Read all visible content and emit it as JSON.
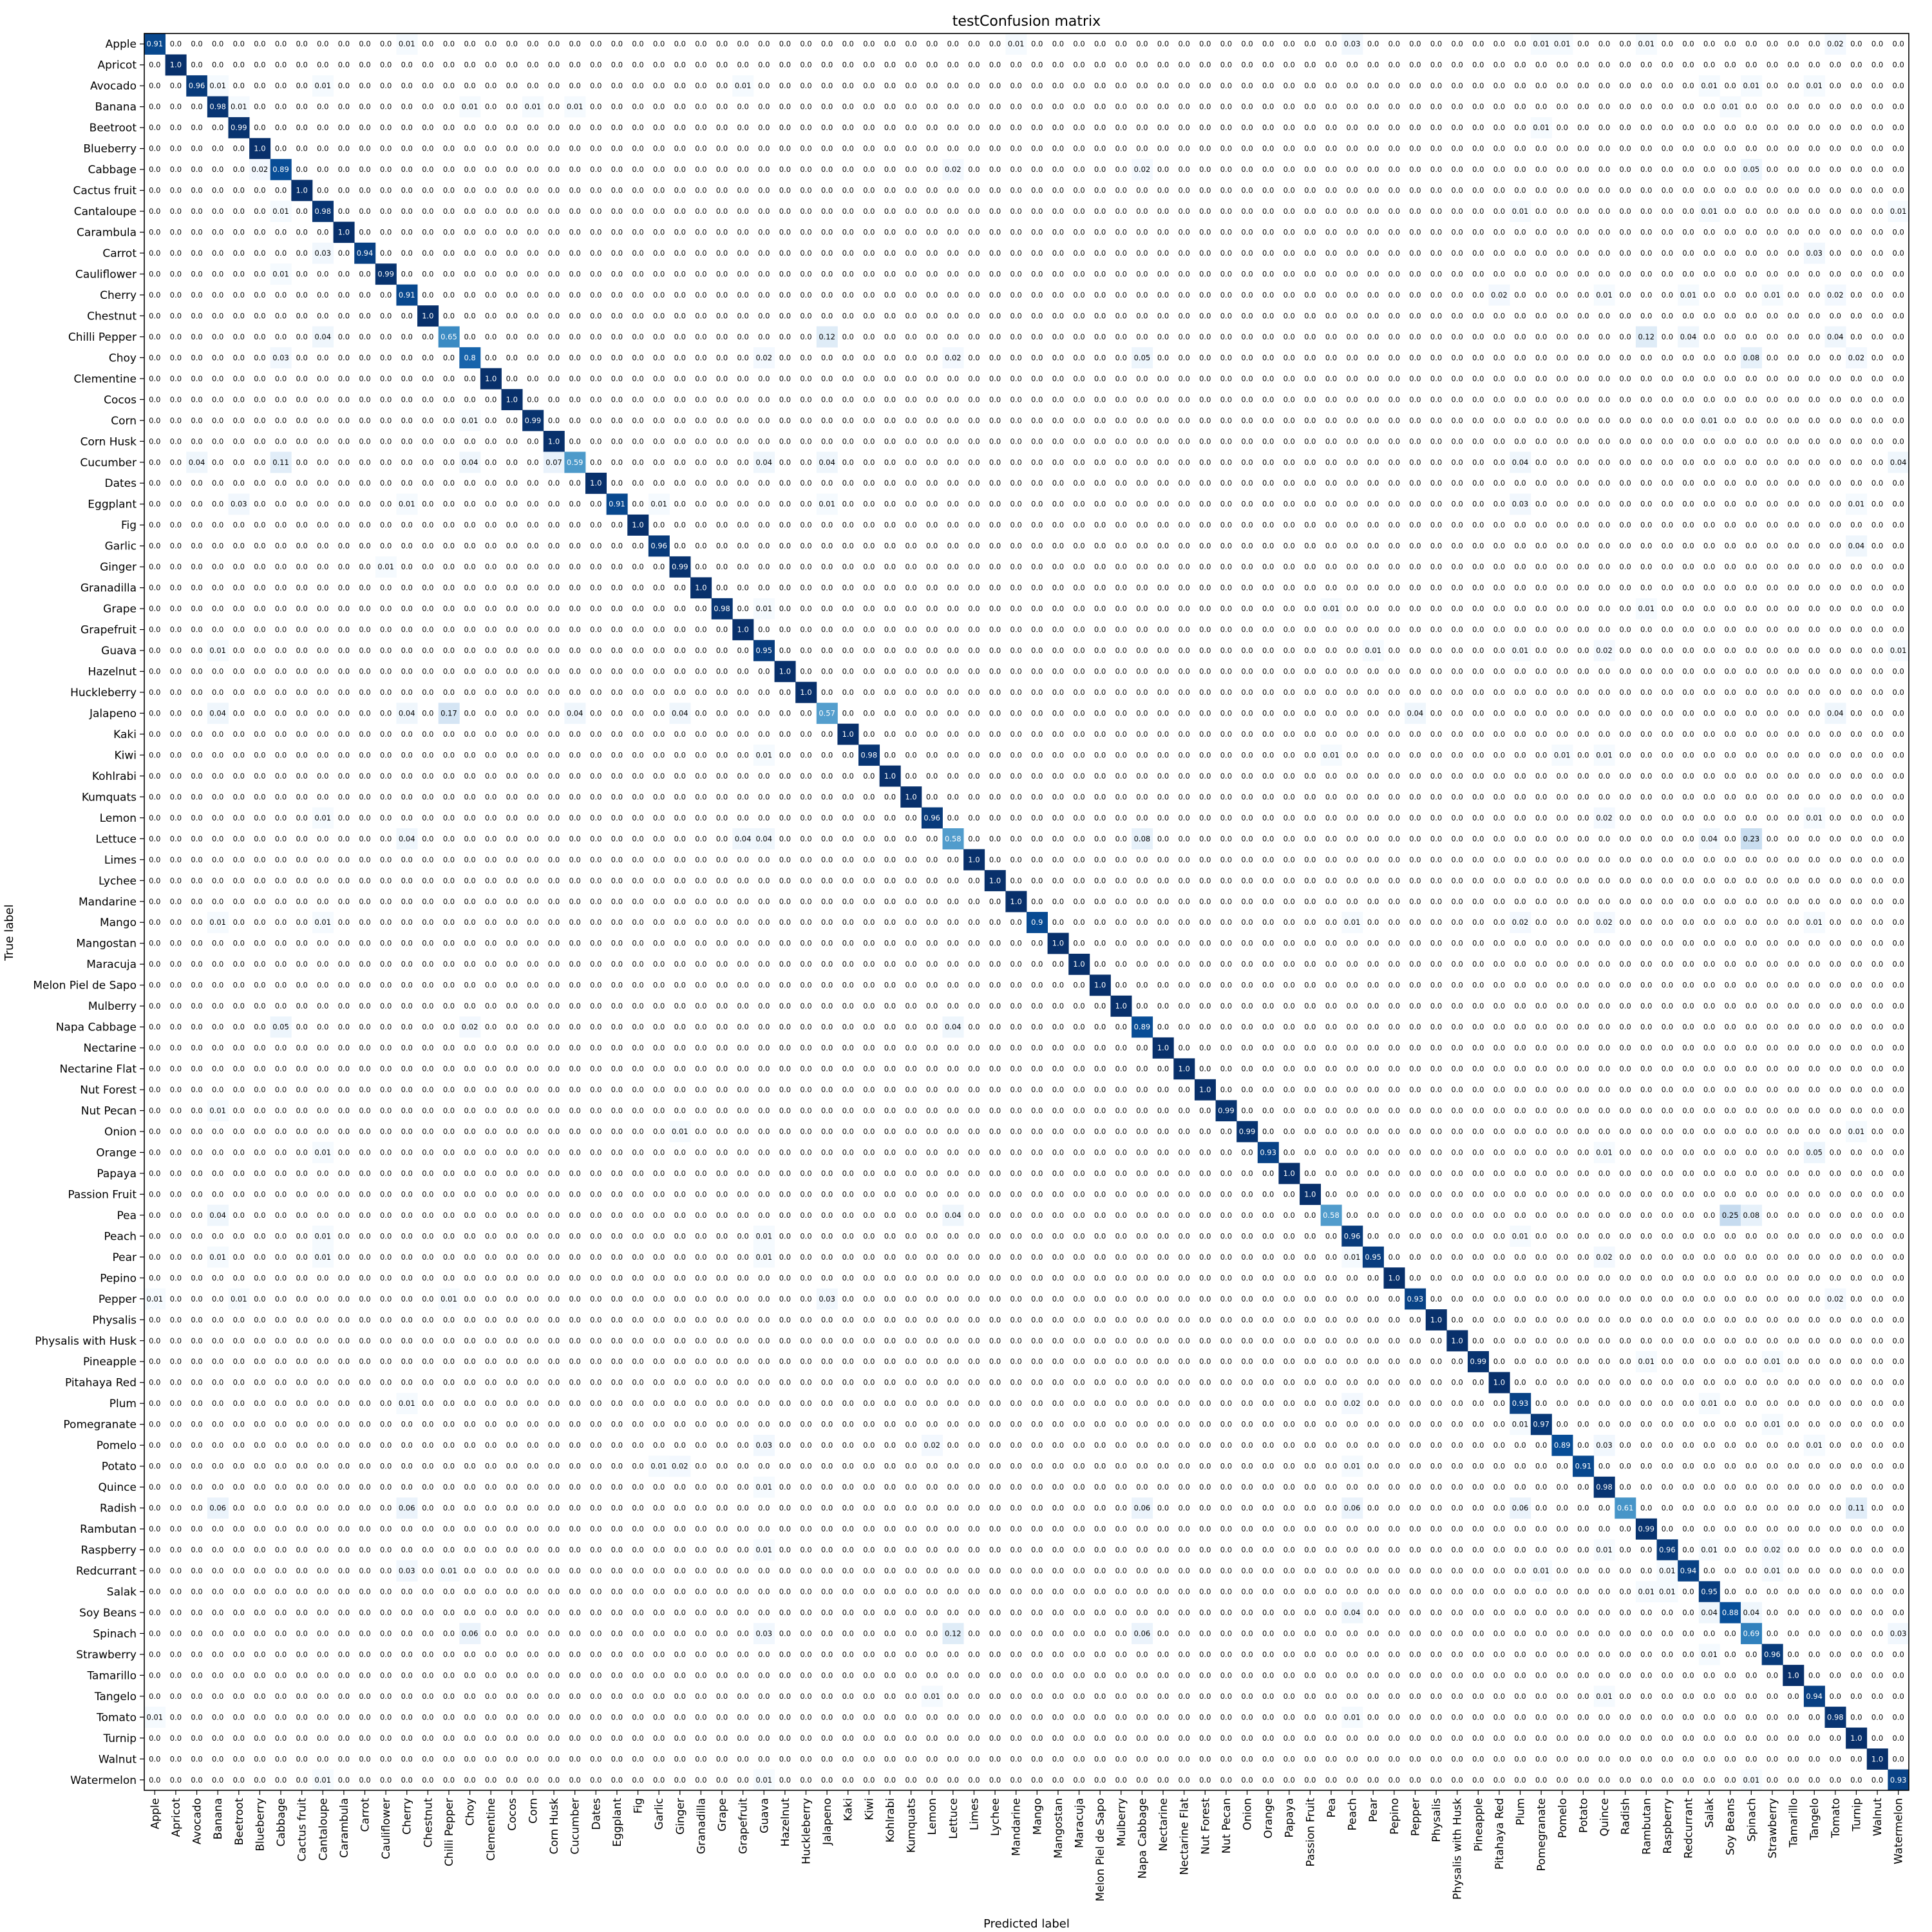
{
  "chart_data": {
    "type": "heatmap",
    "title": "testConfusion matrix",
    "xlabel": "Predicted label",
    "ylabel": "True label",
    "colormap": "Blues",
    "value_range": [
      0,
      1
    ],
    "grid": false,
    "labels": [
      "Apple",
      "Apricot",
      "Avocado",
      "Banana",
      "Beetroot",
      "Blueberry",
      "Cabbage",
      "Cactus fruit",
      "Cantaloupe",
      "Carambula",
      "Carrot",
      "Cauliflower",
      "Cherry",
      "Chestnut",
      "Chilli Pepper",
      "Choy",
      "Clementine",
      "Cocos",
      "Corn",
      "Corn Husk",
      "Cucumber",
      "Dates",
      "Eggplant",
      "Fig",
      "Garlic",
      "Ginger",
      "Granadilla",
      "Grape",
      "Grapefruit",
      "Guava",
      "Hazelnut",
      "Huckleberry",
      "Jalapeno",
      "Kaki",
      "Kiwi",
      "Kohlrabi",
      "Kumquats",
      "Lemon",
      "Lettuce",
      "Limes",
      "Lychee",
      "Mandarine",
      "Mango",
      "Mangostan",
      "Maracuja",
      "Melon Piel de Sapo",
      "Mulberry",
      "Napa Cabbage",
      "Nectarine",
      "Nectarine Flat",
      "Nut Forest",
      "Nut Pecan",
      "Onion",
      "Orange",
      "Papaya",
      "Passion Fruit",
      "Pea",
      "Peach",
      "Pear",
      "Pepino",
      "Pepper",
      "Physalis",
      "Physalis with Husk",
      "Pineapple",
      "Pitahaya Red",
      "Plum",
      "Pomegranate",
      "Pomelo",
      "Potato",
      "Quince",
      "Radish",
      "Rambutan",
      "Raspberry",
      "Redcurrant",
      "Salak",
      "Soy Beans",
      "Spinach",
      "Strawberry",
      "Tamarillo",
      "Tangelo",
      "Tomato",
      "Turnip",
      "Walnut",
      "Watermelon"
    ],
    "diagonal": [
      "0.91",
      "1.0",
      "0.96",
      "0.98",
      "0.99",
      "1.0",
      "0.89",
      "1.0",
      "0.98",
      "1.0",
      "0.94",
      "0.99",
      "0.91",
      "1.0",
      "0.65",
      "0.8",
      "1.0",
      "1.0",
      "0.99",
      "1.0",
      "0.59",
      "1.0",
      "0.91",
      "1.0",
      "0.96",
      "0.99",
      "1.0",
      "0.98",
      "1.0",
      "0.95",
      "1.0",
      "1.0",
      "0.57",
      "1.0",
      "0.98",
      "1.0",
      "1.0",
      "0.96",
      "0.58",
      "1.0",
      "1.0",
      "1.0",
      "0.9",
      "1.0",
      "1.0",
      "1.0",
      "1.0",
      "0.89",
      "1.0",
      "1.0",
      "1.0",
      "0.99",
      "0.99",
      "0.93",
      "1.0",
      "1.0",
      "0.58",
      "0.96",
      "0.95",
      "1.0",
      "0.93",
      "1.0",
      "1.0",
      "0.99",
      "1.0",
      "0.93",
      "0.97",
      "0.89",
      "0.91",
      "0.98",
      "0.61",
      "0.99",
      "0.96",
      "0.94",
      "0.95",
      "0.88",
      "0.69",
      "0.96",
      "1.0",
      "0.94",
      "0.98",
      "1.0",
      "1.0",
      "0.93"
    ],
    "off_diagonal": [
      {
        "row": 0,
        "col": 12,
        "value": "0.01"
      },
      {
        "row": 0,
        "col": 41,
        "value": "0.01"
      },
      {
        "row": 0,
        "col": 57,
        "value": "0.03"
      },
      {
        "row": 0,
        "col": 66,
        "value": "0.01"
      },
      {
        "row": 0,
        "col": 67,
        "value": "0.01"
      },
      {
        "row": 0,
        "col": 71,
        "value": "0.01"
      },
      {
        "row": 0,
        "col": 80,
        "value": "0.02"
      },
      {
        "row": 2,
        "col": 3,
        "value": "0.01"
      },
      {
        "row": 2,
        "col": 8,
        "value": "0.01"
      },
      {
        "row": 2,
        "col": 28,
        "value": "0.01"
      },
      {
        "row": 2,
        "col": 74,
        "value": "0.01"
      },
      {
        "row": 2,
        "col": 76,
        "value": "0.01"
      },
      {
        "row": 2,
        "col": 79,
        "value": "0.01"
      },
      {
        "row": 3,
        "col": 4,
        "value": "0.01"
      },
      {
        "row": 3,
        "col": 15,
        "value": "0.01"
      },
      {
        "row": 3,
        "col": 18,
        "value": "0.01"
      },
      {
        "row": 3,
        "col": 20,
        "value": "0.01"
      },
      {
        "row": 3,
        "col": 75,
        "value": "0.01"
      },
      {
        "row": 4,
        "col": 66,
        "value": "0.01"
      },
      {
        "row": 6,
        "col": 5,
        "value": "0.02"
      },
      {
        "row": 6,
        "col": 38,
        "value": "0.02"
      },
      {
        "row": 6,
        "col": 47,
        "value": "0.02"
      },
      {
        "row": 6,
        "col": 76,
        "value": "0.05"
      },
      {
        "row": 8,
        "col": 6,
        "value": "0.01"
      },
      {
        "row": 8,
        "col": 65,
        "value": "0.01"
      },
      {
        "row": 8,
        "col": 74,
        "value": "0.01"
      },
      {
        "row": 8,
        "col": 83,
        "value": "0.01"
      },
      {
        "row": 10,
        "col": 8,
        "value": "0.03"
      },
      {
        "row": 10,
        "col": 79,
        "value": "0.03"
      },
      {
        "row": 11,
        "col": 6,
        "value": "0.01"
      },
      {
        "row": 12,
        "col": 64,
        "value": "0.02"
      },
      {
        "row": 12,
        "col": 69,
        "value": "0.01"
      },
      {
        "row": 12,
        "col": 73,
        "value": "0.01"
      },
      {
        "row": 12,
        "col": 77,
        "value": "0.01"
      },
      {
        "row": 12,
        "col": 80,
        "value": "0.02"
      },
      {
        "row": 14,
        "col": 8,
        "value": "0.04"
      },
      {
        "row": 14,
        "col": 32,
        "value": "0.12"
      },
      {
        "row": 14,
        "col": 71,
        "value": "0.12"
      },
      {
        "row": 14,
        "col": 73,
        "value": "0.04"
      },
      {
        "row": 14,
        "col": 80,
        "value": "0.04"
      },
      {
        "row": 15,
        "col": 6,
        "value": "0.03"
      },
      {
        "row": 15,
        "col": 29,
        "value": "0.02"
      },
      {
        "row": 15,
        "col": 38,
        "value": "0.02"
      },
      {
        "row": 15,
        "col": 47,
        "value": "0.05"
      },
      {
        "row": 15,
        "col": 76,
        "value": "0.08"
      },
      {
        "row": 15,
        "col": 81,
        "value": "0.02"
      },
      {
        "row": 18,
        "col": 15,
        "value": "0.01"
      },
      {
        "row": 18,
        "col": 74,
        "value": "0.01"
      },
      {
        "row": 20,
        "col": 2,
        "value": "0.04"
      },
      {
        "row": 20,
        "col": 6,
        "value": "0.11"
      },
      {
        "row": 20,
        "col": 15,
        "value": "0.04"
      },
      {
        "row": 20,
        "col": 19,
        "value": "0.07"
      },
      {
        "row": 20,
        "col": 29,
        "value": "0.04"
      },
      {
        "row": 20,
        "col": 32,
        "value": "0.04"
      },
      {
        "row": 20,
        "col": 65,
        "value": "0.04"
      },
      {
        "row": 20,
        "col": 83,
        "value": "0.04"
      },
      {
        "row": 22,
        "col": 4,
        "value": "0.03"
      },
      {
        "row": 22,
        "col": 12,
        "value": "0.01"
      },
      {
        "row": 22,
        "col": 24,
        "value": "0.01"
      },
      {
        "row": 22,
        "col": 32,
        "value": "0.01"
      },
      {
        "row": 22,
        "col": 65,
        "value": "0.03"
      },
      {
        "row": 22,
        "col": 81,
        "value": "0.01"
      },
      {
        "row": 24,
        "col": 81,
        "value": "0.04"
      },
      {
        "row": 25,
        "col": 11,
        "value": "0.01"
      },
      {
        "row": 27,
        "col": 29,
        "value": "0.01"
      },
      {
        "row": 27,
        "col": 56,
        "value": "0.01"
      },
      {
        "row": 27,
        "col": 71,
        "value": "0.01"
      },
      {
        "row": 29,
        "col": 3,
        "value": "0.01"
      },
      {
        "row": 29,
        "col": 58,
        "value": "0.01"
      },
      {
        "row": 29,
        "col": 65,
        "value": "0.01"
      },
      {
        "row": 29,
        "col": 69,
        "value": "0.02"
      },
      {
        "row": 29,
        "col": 83,
        "value": "0.01"
      },
      {
        "row": 32,
        "col": 3,
        "value": "0.04"
      },
      {
        "row": 32,
        "col": 12,
        "value": "0.04"
      },
      {
        "row": 32,
        "col": 14,
        "value": "0.17"
      },
      {
        "row": 32,
        "col": 20,
        "value": "0.04"
      },
      {
        "row": 32,
        "col": 25,
        "value": "0.04"
      },
      {
        "row": 32,
        "col": 60,
        "value": "0.04"
      },
      {
        "row": 32,
        "col": 80,
        "value": "0.04"
      },
      {
        "row": 34,
        "col": 29,
        "value": "0.01"
      },
      {
        "row": 34,
        "col": 56,
        "value": "0.01"
      },
      {
        "row": 34,
        "col": 67,
        "value": "0.01"
      },
      {
        "row": 34,
        "col": 69,
        "value": "0.01"
      },
      {
        "row": 37,
        "col": 8,
        "value": "0.01"
      },
      {
        "row": 37,
        "col": 69,
        "value": "0.02"
      },
      {
        "row": 37,
        "col": 79,
        "value": "0.01"
      },
      {
        "row": 38,
        "col": 12,
        "value": "0.04"
      },
      {
        "row": 38,
        "col": 28,
        "value": "0.04"
      },
      {
        "row": 38,
        "col": 29,
        "value": "0.04"
      },
      {
        "row": 38,
        "col": 47,
        "value": "0.08"
      },
      {
        "row": 38,
        "col": 74,
        "value": "0.04"
      },
      {
        "row": 38,
        "col": 76,
        "value": "0.23"
      },
      {
        "row": 42,
        "col": 3,
        "value": "0.01"
      },
      {
        "row": 42,
        "col": 8,
        "value": "0.01"
      },
      {
        "row": 42,
        "col": 57,
        "value": "0.01"
      },
      {
        "row": 42,
        "col": 65,
        "value": "0.02"
      },
      {
        "row": 42,
        "col": 69,
        "value": "0.02"
      },
      {
        "row": 42,
        "col": 79,
        "value": "0.01"
      },
      {
        "row": 47,
        "col": 6,
        "value": "0.05"
      },
      {
        "row": 47,
        "col": 15,
        "value": "0.02"
      },
      {
        "row": 47,
        "col": 38,
        "value": "0.04"
      },
      {
        "row": 51,
        "col": 3,
        "value": "0.01"
      },
      {
        "row": 52,
        "col": 25,
        "value": "0.01"
      },
      {
        "row": 52,
        "col": 81,
        "value": "0.01"
      },
      {
        "row": 53,
        "col": 8,
        "value": "0.01"
      },
      {
        "row": 53,
        "col": 69,
        "value": "0.01"
      },
      {
        "row": 53,
        "col": 79,
        "value": "0.05"
      },
      {
        "row": 56,
        "col": 3,
        "value": "0.04"
      },
      {
        "row": 56,
        "col": 38,
        "value": "0.04"
      },
      {
        "row": 56,
        "col": 75,
        "value": "0.25"
      },
      {
        "row": 56,
        "col": 76,
        "value": "0.08"
      },
      {
        "row": 57,
        "col": 8,
        "value": "0.01"
      },
      {
        "row": 57,
        "col": 29,
        "value": "0.01"
      },
      {
        "row": 57,
        "col": 65,
        "value": "0.01"
      },
      {
        "row": 58,
        "col": 3,
        "value": "0.01"
      },
      {
        "row": 58,
        "col": 8,
        "value": "0.01"
      },
      {
        "row": 58,
        "col": 29,
        "value": "0.01"
      },
      {
        "row": 58,
        "col": 57,
        "value": "0.01"
      },
      {
        "row": 58,
        "col": 69,
        "value": "0.02"
      },
      {
        "row": 60,
        "col": 0,
        "value": "0.01"
      },
      {
        "row": 60,
        "col": 4,
        "value": "0.01"
      },
      {
        "row": 60,
        "col": 14,
        "value": "0.01"
      },
      {
        "row": 60,
        "col": 32,
        "value": "0.03"
      },
      {
        "row": 60,
        "col": 80,
        "value": "0.02"
      },
      {
        "row": 63,
        "col": 71,
        "value": "0.01"
      },
      {
        "row": 63,
        "col": 77,
        "value": "0.01"
      },
      {
        "row": 65,
        "col": 12,
        "value": "0.01"
      },
      {
        "row": 65,
        "col": 57,
        "value": "0.02"
      },
      {
        "row": 65,
        "col": 74,
        "value": "0.01"
      },
      {
        "row": 66,
        "col": 65,
        "value": "0.01"
      },
      {
        "row": 66,
        "col": 77,
        "value": "0.01"
      },
      {
        "row": 67,
        "col": 29,
        "value": "0.03"
      },
      {
        "row": 67,
        "col": 37,
        "value": "0.02"
      },
      {
        "row": 67,
        "col": 69,
        "value": "0.03"
      },
      {
        "row": 67,
        "col": 79,
        "value": "0.01"
      },
      {
        "row": 68,
        "col": 24,
        "value": "0.01"
      },
      {
        "row": 68,
        "col": 25,
        "value": "0.02"
      },
      {
        "row": 68,
        "col": 57,
        "value": "0.01"
      },
      {
        "row": 69,
        "col": 29,
        "value": "0.01"
      },
      {
        "row": 70,
        "col": 3,
        "value": "0.06"
      },
      {
        "row": 70,
        "col": 12,
        "value": "0.06"
      },
      {
        "row": 70,
        "col": 47,
        "value": "0.06"
      },
      {
        "row": 70,
        "col": 57,
        "value": "0.06"
      },
      {
        "row": 70,
        "col": 65,
        "value": "0.06"
      },
      {
        "row": 70,
        "col": 81,
        "value": "0.11"
      },
      {
        "row": 72,
        "col": 29,
        "value": "0.01"
      },
      {
        "row": 72,
        "col": 69,
        "value": "0.01"
      },
      {
        "row": 72,
        "col": 74,
        "value": "0.01"
      },
      {
        "row": 72,
        "col": 77,
        "value": "0.02"
      },
      {
        "row": 73,
        "col": 12,
        "value": "0.03"
      },
      {
        "row": 73,
        "col": 14,
        "value": "0.01"
      },
      {
        "row": 73,
        "col": 66,
        "value": "0.01"
      },
      {
        "row": 73,
        "col": 72,
        "value": "0.01"
      },
      {
        "row": 73,
        "col": 77,
        "value": "0.01"
      },
      {
        "row": 74,
        "col": 71,
        "value": "0.01"
      },
      {
        "row": 74,
        "col": 72,
        "value": "0.01"
      },
      {
        "row": 75,
        "col": 57,
        "value": "0.04"
      },
      {
        "row": 75,
        "col": 74,
        "value": "0.04"
      },
      {
        "row": 75,
        "col": 76,
        "value": "0.04"
      },
      {
        "row": 76,
        "col": 15,
        "value": "0.06"
      },
      {
        "row": 76,
        "col": 29,
        "value": "0.03"
      },
      {
        "row": 76,
        "col": 38,
        "value": "0.12"
      },
      {
        "row": 76,
        "col": 47,
        "value": "0.06"
      },
      {
        "row": 76,
        "col": 83,
        "value": "0.03"
      },
      {
        "row": 77,
        "col": 74,
        "value": "0.01"
      },
      {
        "row": 79,
        "col": 37,
        "value": "0.01"
      },
      {
        "row": 79,
        "col": 69,
        "value": "0.01"
      },
      {
        "row": 80,
        "col": 0,
        "value": "0.01"
      },
      {
        "row": 80,
        "col": 57,
        "value": "0.01"
      },
      {
        "row": 83,
        "col": 8,
        "value": "0.01"
      },
      {
        "row": 83,
        "col": 29,
        "value": "0.01"
      },
      {
        "row": 83,
        "col": 76,
        "value": "0.01"
      }
    ],
    "default_cell_value": "0.0"
  }
}
